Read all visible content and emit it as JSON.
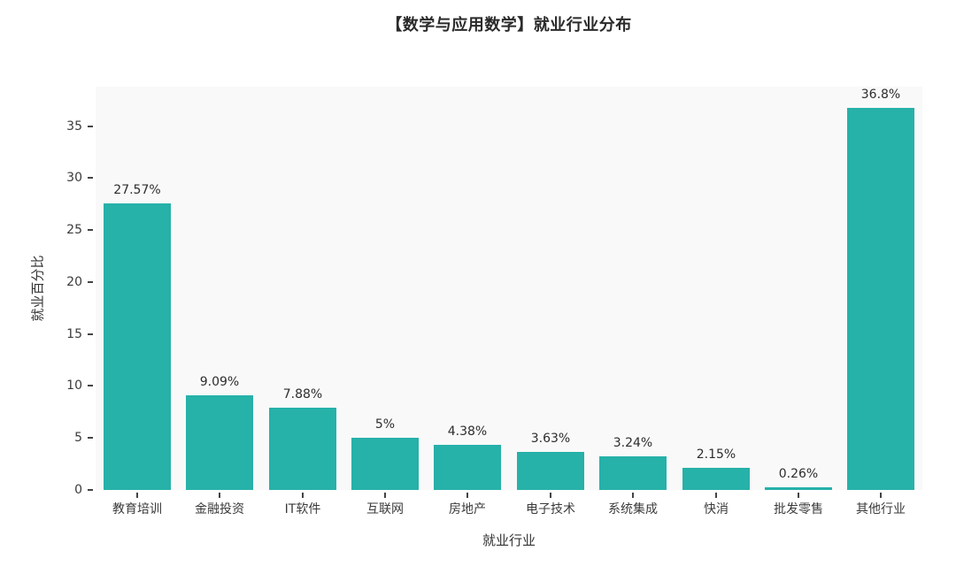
{
  "title": "【数学与应用数学】就业行业分布",
  "chart_data": {
    "type": "bar",
    "title": "【数学与应用数学】就业行业分布",
    "xlabel": "就业行业",
    "ylabel": "就业百分比",
    "categories": [
      "教育培训",
      "金融投资",
      "IT软件",
      "互联网",
      "房地产",
      "电子技术",
      "系统集成",
      "快消",
      "批发零售",
      "其他行业"
    ],
    "values": [
      27.57,
      9.09,
      7.88,
      5,
      4.38,
      3.63,
      3.24,
      2.15,
      0.26,
      36.8
    ],
    "value_labels": [
      "27.57%",
      "9.09%",
      "7.88%",
      "5%",
      "4.38%",
      "3.63%",
      "3.24%",
      "2.15%",
      "0.26%",
      "36.8%"
    ],
    "yticks": [
      0,
      5,
      10,
      15,
      20,
      25,
      30,
      35
    ],
    "ylim": [
      0,
      38.8
    ],
    "grid": false,
    "legend": "none",
    "bar_color": "#26b1a9",
    "plot_bg": "#f9f9f9",
    "tick_color": "#444444",
    "text_color": "#3b3b3b"
  }
}
